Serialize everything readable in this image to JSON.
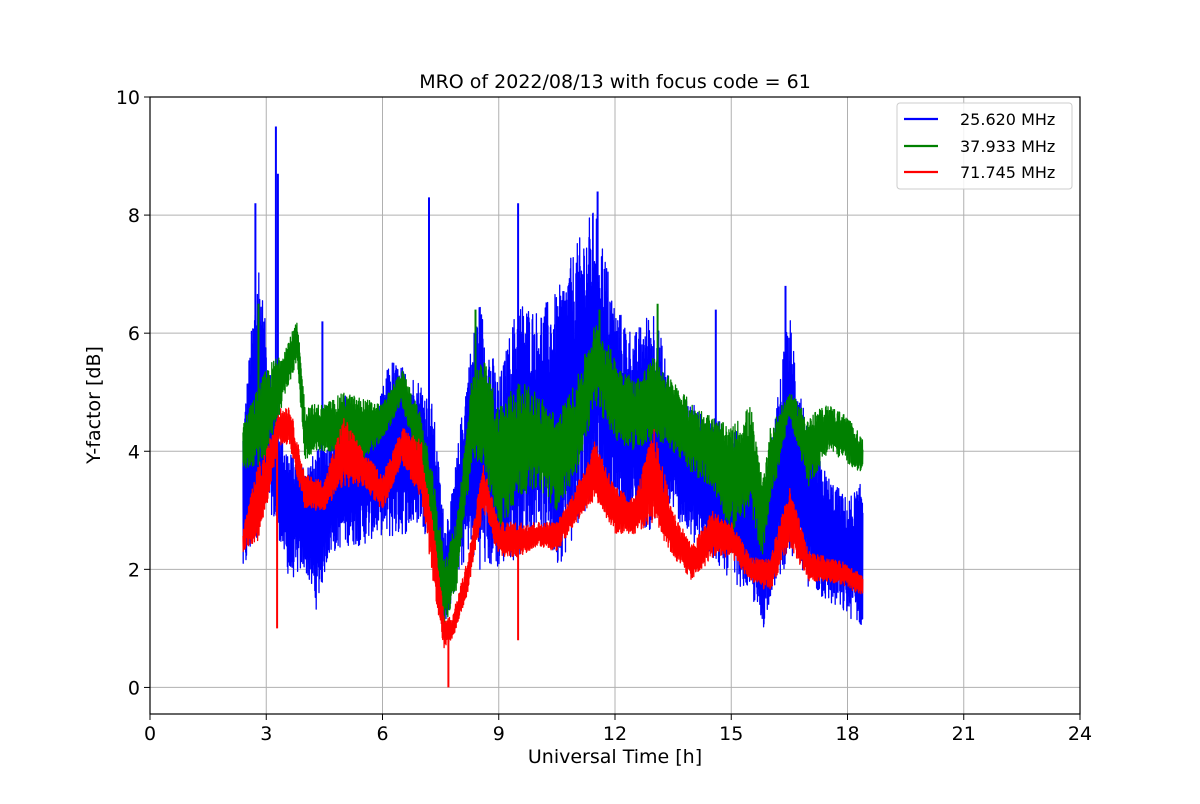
{
  "chart_data": {
    "type": "line",
    "title": "MRO of 2022/08/13 with focus code = 61",
    "xlabel": "Universal Time [h]",
    "ylabel": "Y-factor [dB]",
    "xlim": [
      0,
      24
    ],
    "ylim": [
      -0.45,
      10
    ],
    "xticks": [
      "0",
      "3",
      "6",
      "9",
      "12",
      "15",
      "18",
      "21",
      "24"
    ],
    "yticks": [
      "0",
      "2",
      "4",
      "6",
      "8",
      "10"
    ],
    "grid": true,
    "legend_position": "top-right",
    "series": [
      {
        "name": "25.620 MHz",
        "color": "#0000ff",
        "low": [
          [
            2.4,
            1.8
          ],
          [
            2.8,
            2.6
          ],
          [
            3.0,
            3.2
          ],
          [
            3.3,
            2.6
          ],
          [
            3.6,
            1.8
          ],
          [
            4.0,
            2.0
          ],
          [
            4.3,
            1.3
          ],
          [
            4.6,
            2.2
          ],
          [
            5.0,
            2.4
          ],
          [
            5.5,
            2.4
          ],
          [
            5.9,
            2.6
          ],
          [
            6.2,
            2.5
          ],
          [
            6.6,
            2.6
          ],
          [
            7.0,
            2.8
          ],
          [
            7.3,
            2.2
          ],
          [
            7.6,
            1.0
          ],
          [
            7.8,
            1.5
          ],
          [
            8.2,
            2.3
          ],
          [
            8.5,
            2.0
          ],
          [
            9.0,
            2.0
          ],
          [
            9.5,
            2.2
          ],
          [
            10.0,
            2.8
          ],
          [
            10.5,
            2.0
          ],
          [
            11.0,
            2.6
          ],
          [
            11.5,
            3.4
          ],
          [
            12.0,
            2.8
          ],
          [
            12.5,
            2.8
          ],
          [
            13.0,
            2.6
          ],
          [
            13.5,
            3.0
          ],
          [
            14.0,
            2.4
          ],
          [
            14.5,
            2.2
          ],
          [
            15.0,
            1.8
          ],
          [
            15.5,
            1.6
          ],
          [
            15.8,
            0.9
          ],
          [
            16.0,
            1.5
          ],
          [
            16.5,
            2.2
          ],
          [
            17.0,
            1.7
          ],
          [
            17.5,
            1.4
          ],
          [
            18.0,
            1.2
          ],
          [
            18.4,
            1.0
          ]
        ],
        "high": [
          [
            2.4,
            4.5
          ],
          [
            2.8,
            7.4
          ],
          [
            3.0,
            6.0
          ],
          [
            3.3,
            4.5
          ],
          [
            3.6,
            4.0
          ],
          [
            4.0,
            3.8
          ],
          [
            4.3,
            4.0
          ],
          [
            4.6,
            4.3
          ],
          [
            5.0,
            5.0
          ],
          [
            5.5,
            4.6
          ],
          [
            5.9,
            4.8
          ],
          [
            6.2,
            5.6
          ],
          [
            6.6,
            5.4
          ],
          [
            7.0,
            5.2
          ],
          [
            7.3,
            4.8
          ],
          [
            7.6,
            2.8
          ],
          [
            7.8,
            3.3
          ],
          [
            8.2,
            5.5
          ],
          [
            8.5,
            6.6
          ],
          [
            9.0,
            5.2
          ],
          [
            9.5,
            6.6
          ],
          [
            10.0,
            6.4
          ],
          [
            10.5,
            6.7
          ],
          [
            11.0,
            7.5
          ],
          [
            11.5,
            8.2
          ],
          [
            12.0,
            6.5
          ],
          [
            12.5,
            6.0
          ],
          [
            13.0,
            6.5
          ],
          [
            13.5,
            5.0
          ],
          [
            14.0,
            4.8
          ],
          [
            14.5,
            4.6
          ],
          [
            15.0,
            4.4
          ],
          [
            15.5,
            4.2
          ],
          [
            15.8,
            3.2
          ],
          [
            16.0,
            4.0
          ],
          [
            16.5,
            6.4
          ],
          [
            17.0,
            4.2
          ],
          [
            17.5,
            3.6
          ],
          [
            18.0,
            3.2
          ],
          [
            18.4,
            3.5
          ]
        ],
        "spikes": [
          [
            2.72,
            8.2
          ],
          [
            3.25,
            9.5
          ],
          [
            3.3,
            8.7
          ],
          [
            4.45,
            6.2
          ],
          [
            7.2,
            8.3
          ],
          [
            9.5,
            8.2
          ],
          [
            11.55,
            8.4
          ],
          [
            14.6,
            6.4
          ],
          [
            16.4,
            6.8
          ]
        ]
      },
      {
        "name": "37.933 MHz",
        "color": "#008000",
        "low": [
          [
            2.4,
            3.7
          ],
          [
            3.0,
            3.8
          ],
          [
            3.5,
            5.0
          ],
          [
            3.8,
            5.5
          ],
          [
            4.0,
            3.8
          ],
          [
            4.5,
            4.0
          ],
          [
            5.0,
            4.0
          ],
          [
            5.5,
            3.8
          ],
          [
            6.0,
            4.2
          ],
          [
            6.5,
            4.8
          ],
          [
            7.0,
            3.5
          ],
          [
            7.3,
            2.2
          ],
          [
            7.6,
            1.0
          ],
          [
            7.9,
            1.6
          ],
          [
            8.3,
            3.8
          ],
          [
            8.6,
            3.8
          ],
          [
            9.0,
            2.6
          ],
          [
            9.5,
            3.2
          ],
          [
            10.0,
            3.4
          ],
          [
            10.5,
            3.0
          ],
          [
            11.0,
            3.6
          ],
          [
            11.5,
            4.8
          ],
          [
            12.0,
            4.2
          ],
          [
            12.5,
            4.0
          ],
          [
            13.0,
            4.2
          ],
          [
            13.5,
            4.0
          ],
          [
            14.0,
            3.6
          ],
          [
            14.5,
            3.4
          ],
          [
            15.0,
            2.6
          ],
          [
            15.5,
            3.0
          ],
          [
            15.8,
            2.2
          ],
          [
            16.0,
            3.0
          ],
          [
            16.5,
            4.6
          ],
          [
            17.0,
            3.4
          ],
          [
            17.5,
            4.0
          ],
          [
            18.0,
            3.8
          ],
          [
            18.4,
            3.6
          ]
        ],
        "high": [
          [
            2.4,
            4.5
          ],
          [
            3.0,
            5.4
          ],
          [
            3.5,
            5.8
          ],
          [
            3.8,
            6.2
          ],
          [
            4.0,
            4.8
          ],
          [
            4.5,
            4.8
          ],
          [
            5.0,
            5.0
          ],
          [
            5.5,
            4.9
          ],
          [
            6.0,
            4.8
          ],
          [
            6.5,
            5.4
          ],
          [
            7.0,
            4.6
          ],
          [
            7.3,
            3.6
          ],
          [
            7.6,
            2.2
          ],
          [
            7.9,
            2.8
          ],
          [
            8.3,
            5.2
          ],
          [
            8.6,
            5.6
          ],
          [
            9.0,
            4.8
          ],
          [
            9.5,
            5.2
          ],
          [
            10.0,
            5.0
          ],
          [
            10.5,
            4.6
          ],
          [
            11.0,
            5.2
          ],
          [
            11.5,
            6.2
          ],
          [
            12.0,
            5.6
          ],
          [
            12.5,
            5.2
          ],
          [
            13.0,
            5.6
          ],
          [
            13.5,
            5.2
          ],
          [
            14.0,
            4.8
          ],
          [
            14.5,
            4.6
          ],
          [
            15.0,
            4.4
          ],
          [
            15.5,
            4.8
          ],
          [
            15.8,
            3.5
          ],
          [
            16.0,
            4.4
          ],
          [
            16.5,
            5.0
          ],
          [
            17.0,
            4.6
          ],
          [
            17.5,
            4.8
          ],
          [
            18.0,
            4.6
          ],
          [
            18.4,
            4.2
          ]
        ],
        "spikes": [
          [
            2.8,
            6.5
          ],
          [
            8.4,
            6.4
          ],
          [
            11.6,
            6.4
          ],
          [
            13.1,
            6.5
          ]
        ]
      },
      {
        "name": "71.745 MHz",
        "color": "#ff0000",
        "low": [
          [
            2.4,
            2.3
          ],
          [
            2.8,
            2.5
          ],
          [
            3.0,
            3.0
          ],
          [
            3.3,
            4.1
          ],
          [
            3.6,
            4.1
          ],
          [
            4.0,
            3.0
          ],
          [
            4.5,
            3.0
          ],
          [
            5.0,
            3.4
          ],
          [
            5.5,
            3.4
          ],
          [
            6.0,
            3.0
          ],
          [
            6.5,
            3.8
          ],
          [
            7.0,
            3.2
          ],
          [
            7.3,
            1.8
          ],
          [
            7.6,
            0.6
          ],
          [
            7.8,
            0.8
          ],
          [
            8.2,
            1.6
          ],
          [
            8.6,
            3.0
          ],
          [
            9.0,
            2.2
          ],
          [
            9.5,
            2.2
          ],
          [
            10.0,
            2.4
          ],
          [
            10.5,
            2.3
          ],
          [
            11.0,
            2.8
          ],
          [
            11.5,
            3.2
          ],
          [
            12.0,
            2.6
          ],
          [
            12.5,
            2.6
          ],
          [
            13.0,
            2.8
          ],
          [
            13.5,
            2.2
          ],
          [
            14.0,
            1.8
          ],
          [
            14.5,
            2.2
          ],
          [
            15.0,
            2.2
          ],
          [
            15.5,
            1.8
          ],
          [
            16.0,
            1.6
          ],
          [
            16.5,
            2.4
          ],
          [
            17.0,
            1.8
          ],
          [
            17.5,
            1.8
          ],
          [
            18.0,
            1.7
          ],
          [
            18.4,
            1.5
          ]
        ],
        "high": [
          [
            2.4,
            2.7
          ],
          [
            2.8,
            3.8
          ],
          [
            3.0,
            4.0
          ],
          [
            3.3,
            4.7
          ],
          [
            3.6,
            4.8
          ],
          [
            4.0,
            3.6
          ],
          [
            4.5,
            3.5
          ],
          [
            5.0,
            4.6
          ],
          [
            5.5,
            4.0
          ],
          [
            6.0,
            3.6
          ],
          [
            6.5,
            4.4
          ],
          [
            7.0,
            4.2
          ],
          [
            7.3,
            2.8
          ],
          [
            7.6,
            1.2
          ],
          [
            7.8,
            1.2
          ],
          [
            8.2,
            2.2
          ],
          [
            8.6,
            3.8
          ],
          [
            9.0,
            2.8
          ],
          [
            9.5,
            2.8
          ],
          [
            10.0,
            2.8
          ],
          [
            10.5,
            2.8
          ],
          [
            11.0,
            3.4
          ],
          [
            11.5,
            4.2
          ],
          [
            12.0,
            3.4
          ],
          [
            12.5,
            3.2
          ],
          [
            13.0,
            4.4
          ],
          [
            13.5,
            3.0
          ],
          [
            14.0,
            2.4
          ],
          [
            14.5,
            3.0
          ],
          [
            15.0,
            2.8
          ],
          [
            15.5,
            2.2
          ],
          [
            16.0,
            2.2
          ],
          [
            16.5,
            3.4
          ],
          [
            17.0,
            2.3
          ],
          [
            17.5,
            2.2
          ],
          [
            18.0,
            2.1
          ],
          [
            18.4,
            1.9
          ]
        ],
        "spikes": [
          [
            3.28,
            1.0
          ],
          [
            7.7,
            0.0
          ],
          [
            9.5,
            0.8
          ]
        ]
      }
    ]
  }
}
